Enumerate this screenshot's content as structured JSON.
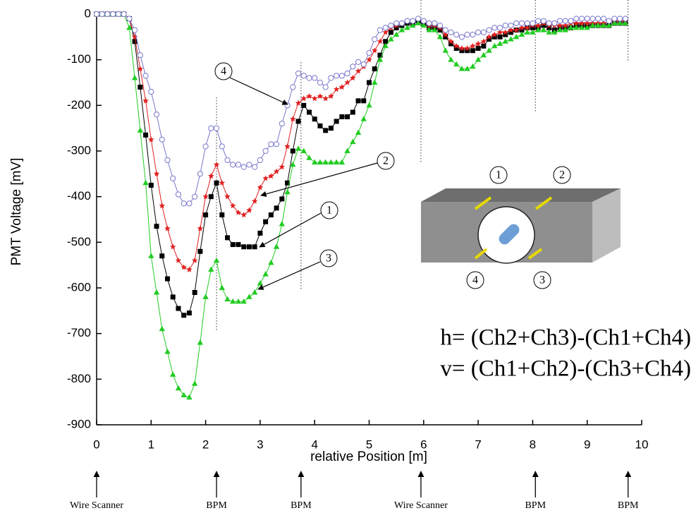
{
  "chart_data": {
    "type": "line",
    "x_label": "relative Position [m]",
    "y_label": "PMT Voltage [mV]",
    "xlim": [
      0,
      10
    ],
    "xticks": [
      0,
      1,
      2,
      3,
      4,
      5,
      6,
      7,
      8,
      9,
      10
    ],
    "ylim": [
      -900,
      0
    ],
    "yticks": [
      0,
      -100,
      -200,
      -300,
      -400,
      -500,
      -600,
      -700,
      -800,
      -900
    ],
    "x": [
      0,
      0.1,
      0.2,
      0.3,
      0.4,
      0.5,
      0.6,
      0.7,
      0.8,
      0.9,
      1,
      1.1,
      1.2,
      1.3,
      1.4,
      1.5,
      1.6,
      1.7,
      1.8,
      1.9,
      2,
      2.1,
      2.2,
      2.3,
      2.4,
      2.5,
      2.6,
      2.7,
      2.8,
      2.9,
      3,
      3.1,
      3.2,
      3.3,
      3.4,
      3.5,
      3.6,
      3.7,
      3.8,
      3.9,
      4,
      4.1,
      4.2,
      4.3,
      4.4,
      4.5,
      4.6,
      4.7,
      4.8,
      4.9,
      5,
      5.1,
      5.2,
      5.3,
      5.4,
      5.5,
      5.6,
      5.7,
      5.8,
      5.9,
      6,
      6.1,
      6.2,
      6.3,
      6.4,
      6.5,
      6.6,
      6.7,
      6.8,
      6.9,
      7,
      7.1,
      7.2,
      7.3,
      7.4,
      7.5,
      7.6,
      7.7,
      7.8,
      7.9,
      8,
      8.1,
      8.2,
      8.3,
      8.4,
      8.5,
      8.6,
      8.7,
      8.8,
      8.9,
      9,
      9.1,
      9.2,
      9.3,
      9.4,
      9.5,
      9.6,
      9.7
    ],
    "series": [
      {
        "name": "1",
        "color": "#000000",
        "marker": "square",
        "values": [
          0,
          0,
          0,
          0,
          0,
          0,
          -10,
          -60,
          -160,
          -265,
          -375,
          -465,
          -530,
          -580,
          -620,
          -645,
          -660,
          -655,
          -610,
          -520,
          -440,
          -400,
          -370,
          -440,
          -490,
          -505,
          -505,
          -510,
          -510,
          -510,
          -480,
          -455,
          -440,
          -425,
          -405,
          -370,
          -300,
          -235,
          -200,
          -215,
          -230,
          -245,
          -255,
          -250,
          -235,
          -225,
          -225,
          -215,
          -190,
          -190,
          -150,
          -120,
          -90,
          -60,
          -40,
          -30,
          -25,
          -20,
          -20,
          -15,
          -20,
          -30,
          -30,
          -35,
          -50,
          -65,
          -75,
          -80,
          -80,
          -80,
          -75,
          -70,
          -55,
          -50,
          -50,
          -45,
          -40,
          -35,
          -35,
          -30,
          -30,
          -30,
          -25,
          -30,
          -35,
          -30,
          -30,
          -30,
          -25,
          -25,
          -25,
          -25,
          -25,
          -25,
          -25,
          -20,
          -20,
          -20
        ]
      },
      {
        "name": "2",
        "color": "#e02020",
        "marker": "star",
        "values": [
          0,
          0,
          0,
          0,
          0,
          0,
          -10,
          -50,
          -120,
          -190,
          -275,
          -350,
          -420,
          -470,
          -510,
          -540,
          -555,
          -560,
          -540,
          -470,
          -400,
          -355,
          -330,
          -370,
          -400,
          -420,
          -435,
          -440,
          -430,
          -410,
          -380,
          -360,
          -355,
          -345,
          -335,
          -290,
          -230,
          -195,
          -185,
          -180,
          -185,
          -180,
          -185,
          -180,
          -165,
          -160,
          -150,
          -140,
          -125,
          -115,
          -100,
          -80,
          -60,
          -40,
          -30,
          -25,
          -20,
          -15,
          -15,
          -10,
          -15,
          -25,
          -25,
          -30,
          -45,
          -60,
          -70,
          -75,
          -75,
          -70,
          -65,
          -60,
          -50,
          -45,
          -40,
          -40,
          -35,
          -35,
          -30,
          -30,
          -25,
          -25,
          -20,
          -25,
          -25,
          -25,
          -25,
          -20,
          -20,
          -20,
          -20,
          -20,
          -20,
          -20,
          -15,
          -15,
          -15,
          -15
        ]
      },
      {
        "name": "3",
        "color": "#22cc22",
        "marker": "triangle",
        "values": [
          0,
          0,
          0,
          0,
          0,
          0,
          -30,
          -140,
          -255,
          -370,
          -530,
          -610,
          -690,
          -740,
          -790,
          -820,
          -835,
          -840,
          -810,
          -720,
          -620,
          -560,
          -540,
          -600,
          -625,
          -630,
          -630,
          -630,
          -620,
          -610,
          -590,
          -570,
          -545,
          -510,
          -460,
          -390,
          -330,
          -295,
          -300,
          -315,
          -325,
          -325,
          -325,
          -325,
          -325,
          -325,
          -300,
          -280,
          -260,
          -230,
          -200,
          -150,
          -100,
          -70,
          -55,
          -45,
          -35,
          -30,
          -25,
          -20,
          -25,
          -35,
          -35,
          -50,
          -80,
          -100,
          -110,
          -120,
          -120,
          -115,
          -100,
          -90,
          -80,
          -70,
          -65,
          -60,
          -55,
          -50,
          -45,
          -40,
          -40,
          -35,
          -35,
          -40,
          -40,
          -35,
          -35,
          -30,
          -30,
          -30,
          -30,
          -25,
          -25,
          -25,
          -25,
          -20,
          -20,
          -20
        ]
      },
      {
        "name": "4",
        "color": "#7777cc",
        "marker": "circle",
        "values": [
          0,
          0,
          0,
          0,
          0,
          0,
          -10,
          -35,
          -90,
          -135,
          -170,
          -220,
          -275,
          -320,
          -360,
          -395,
          -415,
          -415,
          -400,
          -350,
          -290,
          -250,
          -250,
          -290,
          -320,
          -330,
          -330,
          -335,
          -330,
          -335,
          -320,
          -300,
          -285,
          -285,
          -240,
          -200,
          -160,
          -130,
          -135,
          -140,
          -140,
          -150,
          -160,
          -140,
          -135,
          -135,
          -130,
          -115,
          -105,
          -110,
          -85,
          -55,
          -35,
          -30,
          -25,
          -20,
          -20,
          -15,
          -15,
          -10,
          -15,
          -20,
          -20,
          -25,
          -35,
          -40,
          -45,
          -50,
          -45,
          -45,
          -40,
          -40,
          -35,
          -30,
          -30,
          -25,
          -25,
          -20,
          -20,
          -20,
          -20,
          -15,
          -15,
          -20,
          -20,
          -15,
          -15,
          -15,
          -10,
          -10,
          -10,
          -10,
          -10,
          -10,
          -15,
          -10,
          -10,
          -10
        ]
      }
    ],
    "devices": [
      {
        "label": "Wire Scanner",
        "x": 0
      },
      {
        "label": "BPM",
        "x": 2.2
      },
      {
        "label": "BPM",
        "x": 3.75
      },
      {
        "label": "Wire Scanner",
        "x": 5.95
      },
      {
        "label": "BPM",
        "x": 8.05
      },
      {
        "label": "BPM",
        "x": 9.75
      }
    ],
    "formulas": [
      "h= (Ch2+Ch3)-(Ch1+Ch4)",
      "v= (Ch1+Ch2)-(Ch3+Ch4)"
    ]
  }
}
